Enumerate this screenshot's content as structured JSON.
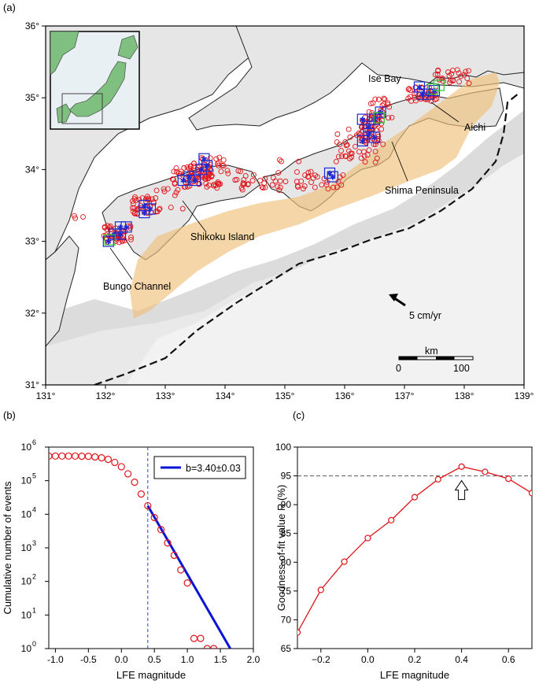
{
  "panels": {
    "a": {
      "letter": "(a)"
    },
    "b": {
      "letter": "(b)"
    },
    "c": {
      "letter": "(c)"
    }
  },
  "chart_data": [
    {
      "type": "map",
      "panel": "(a)",
      "x_ticks": [
        "131°",
        "132°",
        "133°",
        "134°",
        "135°",
        "136°",
        "137°",
        "138°",
        "139°"
      ],
      "y_ticks": [
        "31°",
        "32°",
        "33°",
        "34°",
        "35°",
        "36°"
      ],
      "xlim": [
        131,
        139
      ],
      "ylim": [
        31,
        36
      ],
      "annotations": [
        {
          "text": "Ise Bay",
          "lon": 136.45,
          "lat": 35.3
        },
        {
          "text": "Aichi",
          "lon": 137.45,
          "lat": 34.25
        },
        {
          "text": "Shima Peninsula",
          "lon": 136.35,
          "lat": 33.65
        },
        {
          "text": "Shikoku Island",
          "lon": 133.15,
          "lat": 33.05
        },
        {
          "text": "Bungo Channel",
          "lon": 132.0,
          "lat": 32.4
        },
        {
          "text": "5 cm/yr",
          "lon": 136.2,
          "lat": 31.98
        }
      ],
      "scale_bar": {
        "title": "km",
        "start": "0",
        "end": "100"
      }
    },
    {
      "type": "scatter",
      "panel": "(b)",
      "xlabel": "LFE magnitude",
      "ylabel": "Cumulative number of events",
      "xlim": [
        -1.1,
        2.0
      ],
      "ylim_log10": [
        0,
        6
      ],
      "x_ticks": [
        "-1.0",
        "-0.5",
        "0.0",
        "0.5",
        "1.0",
        "1.5",
        "2.0"
      ],
      "y_ticks": [
        {
          "base": "10",
          "exp": "0"
        },
        {
          "base": "10",
          "exp": "1"
        },
        {
          "base": "10",
          "exp": "2"
        },
        {
          "base": "10",
          "exp": "3"
        },
        {
          "base": "10",
          "exp": "4"
        },
        {
          "base": "10",
          "exp": "5"
        },
        {
          "base": "10",
          "exp": "6"
        }
      ],
      "x": [
        -1.1,
        -1.0,
        -0.9,
        -0.8,
        -0.7,
        -0.6,
        -0.5,
        -0.4,
        -0.3,
        -0.2,
        -0.1,
        0.0,
        0.1,
        0.2,
        0.3,
        0.4,
        0.5,
        0.6,
        0.7,
        0.8,
        0.9,
        1.0,
        1.1,
        1.2,
        1.3,
        1.4
      ],
      "y": [
        540000,
        540000,
        540000,
        540000,
        540000,
        535000,
        530000,
        510000,
        480000,
        430000,
        350000,
        260000,
        160000,
        90000,
        40000,
        18000,
        8000,
        3500,
        1400,
        600,
        220,
        90,
        2,
        2,
        1,
        1
      ],
      "fit_line": {
        "label": "b=3.40±0.03",
        "x": [
          0.4,
          1.65
        ],
        "y": [
          18000,
          1
        ]
      },
      "mc_marker_x": 0.4
    },
    {
      "type": "line",
      "panel": "(c)",
      "xlabel": "LFE magnitude",
      "ylabel": "Goodness-of-fit value R (%)",
      "xlim": [
        -0.3,
        0.7
      ],
      "ylim": [
        65,
        100
      ],
      "x_ticks": [
        "−0.2",
        "0.0",
        "0.2",
        "0.4",
        "0.6"
      ],
      "y_ticks": [
        "65",
        "70",
        "75",
        "80",
        "85",
        "90",
        "95",
        "100"
      ],
      "x": [
        -0.3,
        -0.2,
        -0.1,
        0.0,
        0.1,
        0.2,
        0.3,
        0.4,
        0.5,
        0.6,
        0.7
      ],
      "y": [
        67.8,
        75.2,
        80.1,
        84.2,
        87.3,
        91.3,
        94.4,
        96.6,
        95.7,
        94.5,
        92.0
      ],
      "threshold": 95,
      "arrow_at_x": 0.4
    }
  ],
  "colors": {
    "events": "#e0141a",
    "grid_cells": "#1c2bd6",
    "green_cells": "#2fc32f",
    "fit_line": "#0a14d4",
    "mc_line": "#3040c8",
    "slow_slip": "#f3c98a",
    "land": "#e6e6e6",
    "sea_shade": "#d2d2d2"
  }
}
